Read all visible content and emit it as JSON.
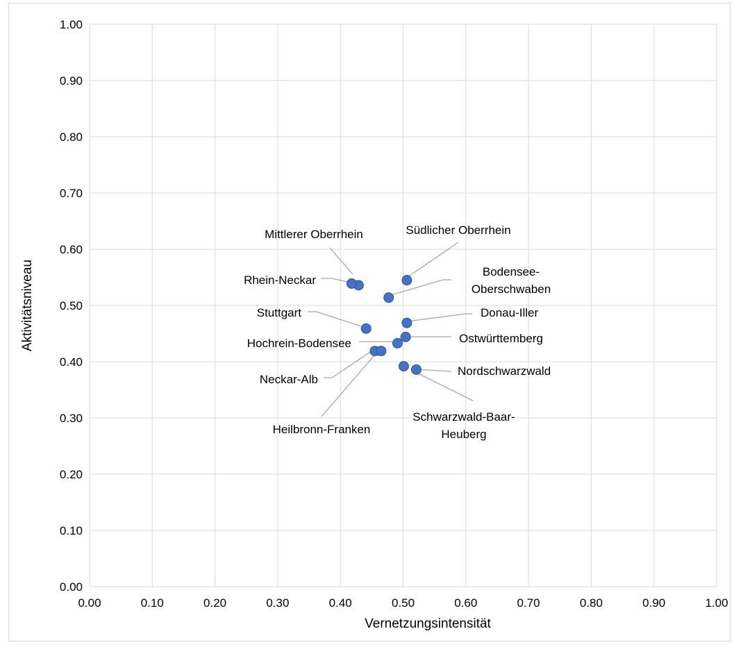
{
  "chart_data": {
    "type": "scatter",
    "title": "",
    "xlabel": "Vernetzungsintensität",
    "ylabel": "Aktivitätsniveau",
    "xlim": [
      0,
      1
    ],
    "ylim": [
      0,
      1
    ],
    "x_ticks": [
      "0.00",
      "0.10",
      "0.20",
      "0.30",
      "0.40",
      "0.50",
      "0.60",
      "0.70",
      "0.80",
      "0.90",
      "1.00"
    ],
    "y_ticks": [
      "0.00",
      "0.10",
      "0.20",
      "0.30",
      "0.40",
      "0.50",
      "0.60",
      "0.70",
      "0.80",
      "0.90",
      "1.00"
    ],
    "grid": true,
    "legend": "none",
    "marker_color": "#4472C4",
    "points": [
      {
        "name": "Mittlerer Oberrhein",
        "label_lines": [
          "Mittlerer Oberrhein"
        ],
        "x": 0.429,
        "y": 0.536
      },
      {
        "name": "Rhein-Neckar",
        "label_lines": [
          "Rhein-Neckar"
        ],
        "x": 0.418,
        "y": 0.539
      },
      {
        "name": "Südlicher Oberrhein",
        "label_lines": [
          "Südlicher Oberrhein"
        ],
        "x": 0.506,
        "y": 0.545
      },
      {
        "name": "Bodensee-Oberschwaben",
        "label_lines": [
          "Bodensee-",
          "Oberschwaben"
        ],
        "x": 0.477,
        "y": 0.514
      },
      {
        "name": "Stuttgart",
        "label_lines": [
          "Stuttgart"
        ],
        "x": 0.441,
        "y": 0.459
      },
      {
        "name": "Donau-Iller",
        "label_lines": [
          "Donau-Iller"
        ],
        "x": 0.506,
        "y": 0.469
      },
      {
        "name": "Ostwürttemberg",
        "label_lines": [
          "Ostwürttemberg"
        ],
        "x": 0.504,
        "y": 0.444
      },
      {
        "name": "Hochrein-Bodensee",
        "label_lines": [
          "Hochrein-Bodensee"
        ],
        "x": 0.491,
        "y": 0.433
      },
      {
        "name": "Neckar-Alb",
        "label_lines": [
          "Neckar-Alb"
        ],
        "x": 0.455,
        "y": 0.419
      },
      {
        "name": "Heilbronn-Franken",
        "label_lines": [
          "Heilbronn-Franken"
        ],
        "x": 0.465,
        "y": 0.419
      },
      {
        "name": "Nordschwarzwald",
        "label_lines": [
          "Nordschwarzwald"
        ],
        "x": 0.521,
        "y": 0.386
      },
      {
        "name": "Schwarzwald-Baar-Heuberg",
        "label_lines": [
          "Schwarzwald-Baar-",
          "Heuberg"
        ],
        "x": 0.501,
        "y": 0.392
      }
    ]
  }
}
